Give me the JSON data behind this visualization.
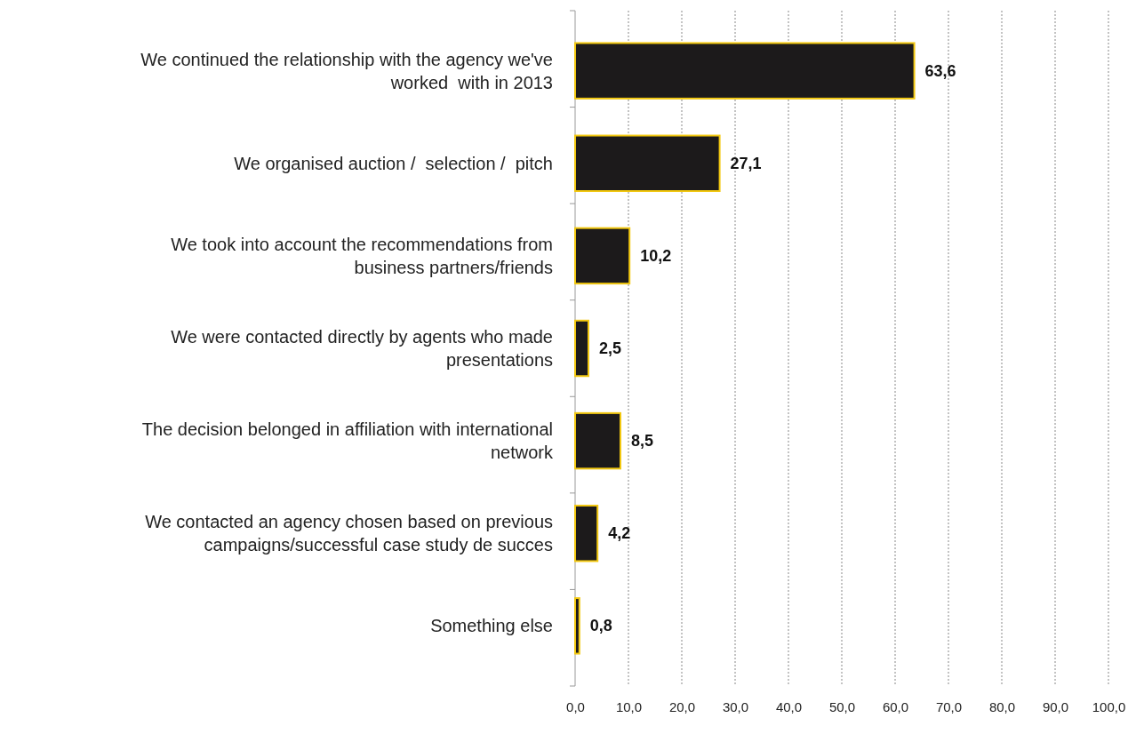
{
  "chart_data": {
    "type": "bar",
    "orientation": "horizontal",
    "categories": [
      "We continued the relationship with the agency we've worked  with in 2013",
      "We organised auction /  selection /  pitch",
      "We took into account the recommendations from business partners/friends",
      "We were contacted directly by agents who made presentations",
      "The decision belonged in affiliation with international network",
      "We contacted an agency chosen based on previous campaigns/successful case study de succes",
      "Something else"
    ],
    "values": [
      63.6,
      27.1,
      10.2,
      2.5,
      8.5,
      4.2,
      0.8
    ],
    "value_labels": [
      "63,6",
      "27,1",
      "10,2",
      "2,5",
      "8,5",
      "4,2",
      "0,8"
    ],
    "color": "#1c1a1b",
    "xlim": [
      0,
      100
    ],
    "xticks": [
      {
        "value": 0,
        "label": "0,0"
      },
      {
        "value": 10,
        "label": "10,0"
      },
      {
        "value": 20,
        "label": "20,0"
      },
      {
        "value": 30,
        "label": "30,0"
      },
      {
        "value": 40,
        "label": "40,0"
      },
      {
        "value": 50,
        "label": "50,0"
      },
      {
        "value": 60,
        "label": "60,0"
      },
      {
        "value": 70,
        "label": "70,0"
      },
      {
        "value": 80,
        "label": "80,0"
      },
      {
        "value": 90,
        "label": "90,0"
      },
      {
        "value": 100,
        "label": "100,0"
      }
    ],
    "grid": "x"
  }
}
